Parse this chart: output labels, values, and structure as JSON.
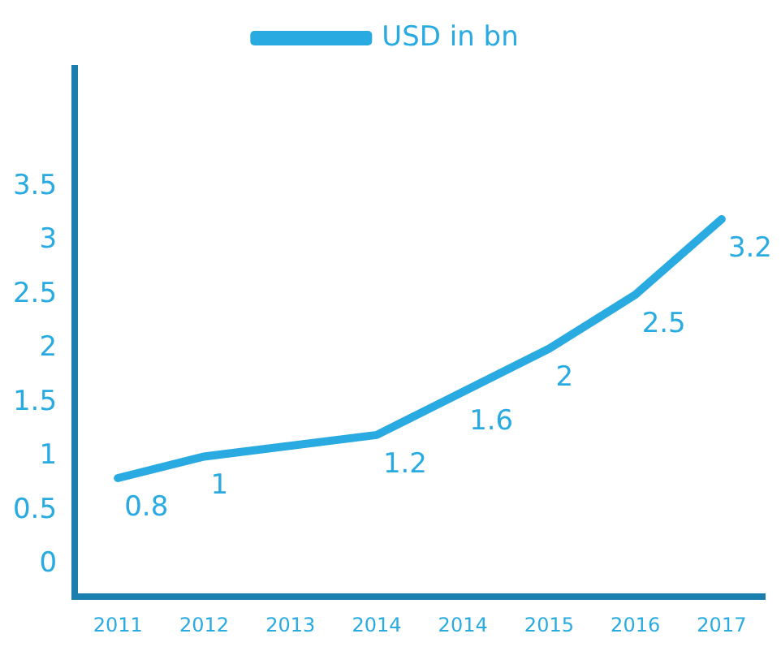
{
  "chart_data": {
    "type": "line",
    "categories": [
      "2011",
      "2012",
      "2013",
      "2014",
      "2014",
      "2015",
      "2016",
      "2017"
    ],
    "series": [
      {
        "name": "USD in bn",
        "color": "#29abe2",
        "values": [
          0.8,
          1,
          null,
          1.2,
          1.6,
          2,
          2.5,
          3.2
        ]
      }
    ],
    "ylim": [
      -0.3,
      4.6
    ],
    "yticks": [
      0,
      0.5,
      1,
      1.5,
      2,
      2.5,
      3,
      3.5
    ],
    "grid": false,
    "legend": "top",
    "marker": "none",
    "line_style": "solid",
    "data_labels": true
  }
}
